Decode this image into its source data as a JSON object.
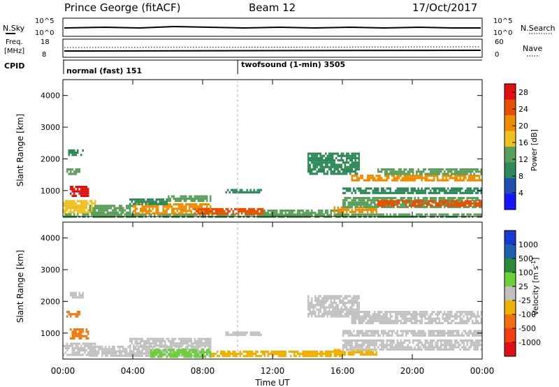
{
  "header": {
    "station": "Prince George (fitACF)",
    "beam": "Beam 12",
    "date": "17/Oct/2017"
  },
  "status_panels": {
    "nsky": {
      "label": "N.Sky",
      "ticks": [
        "10^5",
        "10^0"
      ]
    },
    "nsearch": {
      "label": "N.Search",
      "ticks": [
        "10^5",
        "10^0"
      ]
    },
    "freq": {
      "label_line1": "Freq.",
      "label_line2": "[MHz]",
      "ticks": [
        "18",
        "8"
      ]
    },
    "nave": {
      "label": "Nave",
      "ticks": [
        "60",
        "0"
      ]
    },
    "cpid": {
      "label": "CPID",
      "modes": [
        {
          "name": "normal (fast) 151",
          "start_hour": 0
        },
        {
          "name": "twofsound (1-min) 3505",
          "start_hour": 10
        }
      ]
    }
  },
  "colors": {
    "power_scale": [
      "#1414ff",
      "#1f4fb0",
      "#2e8b57",
      "#5aa05a",
      "#f0c020",
      "#f08c00",
      "#e85000",
      "#e01010"
    ],
    "velocity_scale": [
      "#1a3ad6",
      "#2060b0",
      "#2a8a3a",
      "#6ccf3a",
      "#c0c0c0",
      "#f0b000",
      "#f07010",
      "#f04010",
      "#e01010"
    ]
  },
  "chart_data": [
    {
      "type": "heatmap",
      "quantity": "power",
      "xlabel": "",
      "ylabel": "Slant Range [km]",
      "xlim": [
        0,
        24
      ],
      "ylim": [
        180,
        4500
      ],
      "y_ticks": [
        "1000",
        "2000",
        "3000",
        "4000"
      ],
      "x_ticks": [
        "00:00",
        "04:00",
        "08:00",
        "12:00",
        "16:00",
        "20:00",
        "00:00"
      ],
      "colorbar": {
        "label": "Power [dB]",
        "ticks": [
          "4",
          "8",
          "12",
          "16",
          "20",
          "24",
          "28"
        ],
        "range": [
          0,
          30
        ]
      },
      "regions": [
        {
          "t0": 0.0,
          "t1": 1.9,
          "r0": 300,
          "r1": 700,
          "level": 18
        },
        {
          "t0": 0.4,
          "t1": 1.5,
          "r0": 800,
          "r1": 1150,
          "level": 27
        },
        {
          "t0": 0.2,
          "t1": 1.0,
          "r0": 1500,
          "r1": 1700,
          "level": 12
        },
        {
          "t0": 0.3,
          "t1": 1.2,
          "r0": 2150,
          "r1": 2300,
          "level": 10
        },
        {
          "t0": 0.0,
          "t1": 24.0,
          "r0": 200,
          "r1": 280,
          "level": 12
        },
        {
          "t0": 1.5,
          "t1": 4.0,
          "r0": 280,
          "r1": 550,
          "level": 14
        },
        {
          "t0": 4.0,
          "t1": 8.5,
          "r0": 280,
          "r1": 600,
          "level": 22
        },
        {
          "t0": 7.5,
          "t1": 11.5,
          "r0": 280,
          "r1": 450,
          "level": 26
        },
        {
          "t0": 3.8,
          "t1": 6.0,
          "r0": 600,
          "r1": 750,
          "level": 10
        },
        {
          "t0": 6.0,
          "t1": 8.5,
          "r0": 650,
          "r1": 850,
          "level": 14
        },
        {
          "t0": 9.3,
          "t1": 11.4,
          "r0": 950,
          "r1": 1050,
          "level": 9
        },
        {
          "t0": 11.5,
          "t1": 16.0,
          "r0": 250,
          "r1": 400,
          "level": 12
        },
        {
          "t0": 15.5,
          "t1": 18.0,
          "r0": 350,
          "r1": 500,
          "level": 22
        },
        {
          "t0": 16.0,
          "t1": 24.0,
          "r0": 500,
          "r1": 800,
          "level": 14
        },
        {
          "t0": 18.0,
          "t1": 24.0,
          "r0": 550,
          "r1": 700,
          "level": 26
        },
        {
          "t0": 16.0,
          "t1": 24.0,
          "r0": 900,
          "r1": 1100,
          "level": 10
        },
        {
          "t0": 14.0,
          "t1": 17.0,
          "r0": 1500,
          "r1": 2200,
          "level": 9
        },
        {
          "t0": 16.5,
          "t1": 24.0,
          "r0": 1300,
          "r1": 1500,
          "level": 20
        },
        {
          "t0": 18.0,
          "t1": 24.0,
          "r0": 1500,
          "r1": 1700,
          "level": 12
        }
      ]
    },
    {
      "type": "heatmap",
      "quantity": "velocity",
      "xlabel": "Time UT",
      "ylabel": "Slant Range [km]",
      "xlim": [
        0,
        24
      ],
      "ylim": [
        180,
        4500
      ],
      "y_ticks": [
        "1000",
        "2000",
        "3000",
        "4000"
      ],
      "x_ticks": [
        "00:00",
        "04:00",
        "08:00",
        "12:00",
        "16:00",
        "20:00",
        "00:00"
      ],
      "colorbar": {
        "label": "Velocity [m s^-1]",
        "ticks": [
          "1000",
          "500",
          "100",
          "25",
          "-25",
          "-100",
          "-500",
          "-1000"
        ]
      },
      "regions": [
        {
          "t0": 0.0,
          "t1": 1.9,
          "r0": 300,
          "r1": 700,
          "level": "gray"
        },
        {
          "t0": 0.4,
          "t1": 1.5,
          "r0": 800,
          "r1": 1150,
          "level": "orange"
        },
        {
          "t0": 0.2,
          "t1": 1.0,
          "r0": 1500,
          "r1": 1700,
          "level": "orange"
        },
        {
          "t0": 0.3,
          "t1": 1.2,
          "r0": 2150,
          "r1": 2300,
          "level": "gray"
        },
        {
          "t0": 1.5,
          "t1": 8.5,
          "r0": 280,
          "r1": 600,
          "level": "gray"
        },
        {
          "t0": 5.0,
          "t1": 8.5,
          "r0": 280,
          "r1": 500,
          "level": "green"
        },
        {
          "t0": 3.8,
          "t1": 8.5,
          "r0": 600,
          "r1": 850,
          "level": "gray"
        },
        {
          "t0": 9.3,
          "t1": 11.4,
          "r0": 950,
          "r1": 1050,
          "level": "gray"
        },
        {
          "t0": 8.5,
          "t1": 16.0,
          "r0": 250,
          "r1": 450,
          "level": "yellow"
        },
        {
          "t0": 15.5,
          "t1": 18.0,
          "r0": 350,
          "r1": 500,
          "level": "yellow"
        },
        {
          "t0": 16.0,
          "t1": 24.0,
          "r0": 500,
          "r1": 800,
          "level": "gray"
        },
        {
          "t0": 16.0,
          "t1": 24.0,
          "r0": 900,
          "r1": 1100,
          "level": "gray"
        },
        {
          "t0": 14.0,
          "t1": 17.0,
          "r0": 1500,
          "r1": 2200,
          "level": "gray"
        },
        {
          "t0": 16.5,
          "t1": 24.0,
          "r0": 1300,
          "r1": 1700,
          "level": "gray"
        }
      ]
    }
  ]
}
